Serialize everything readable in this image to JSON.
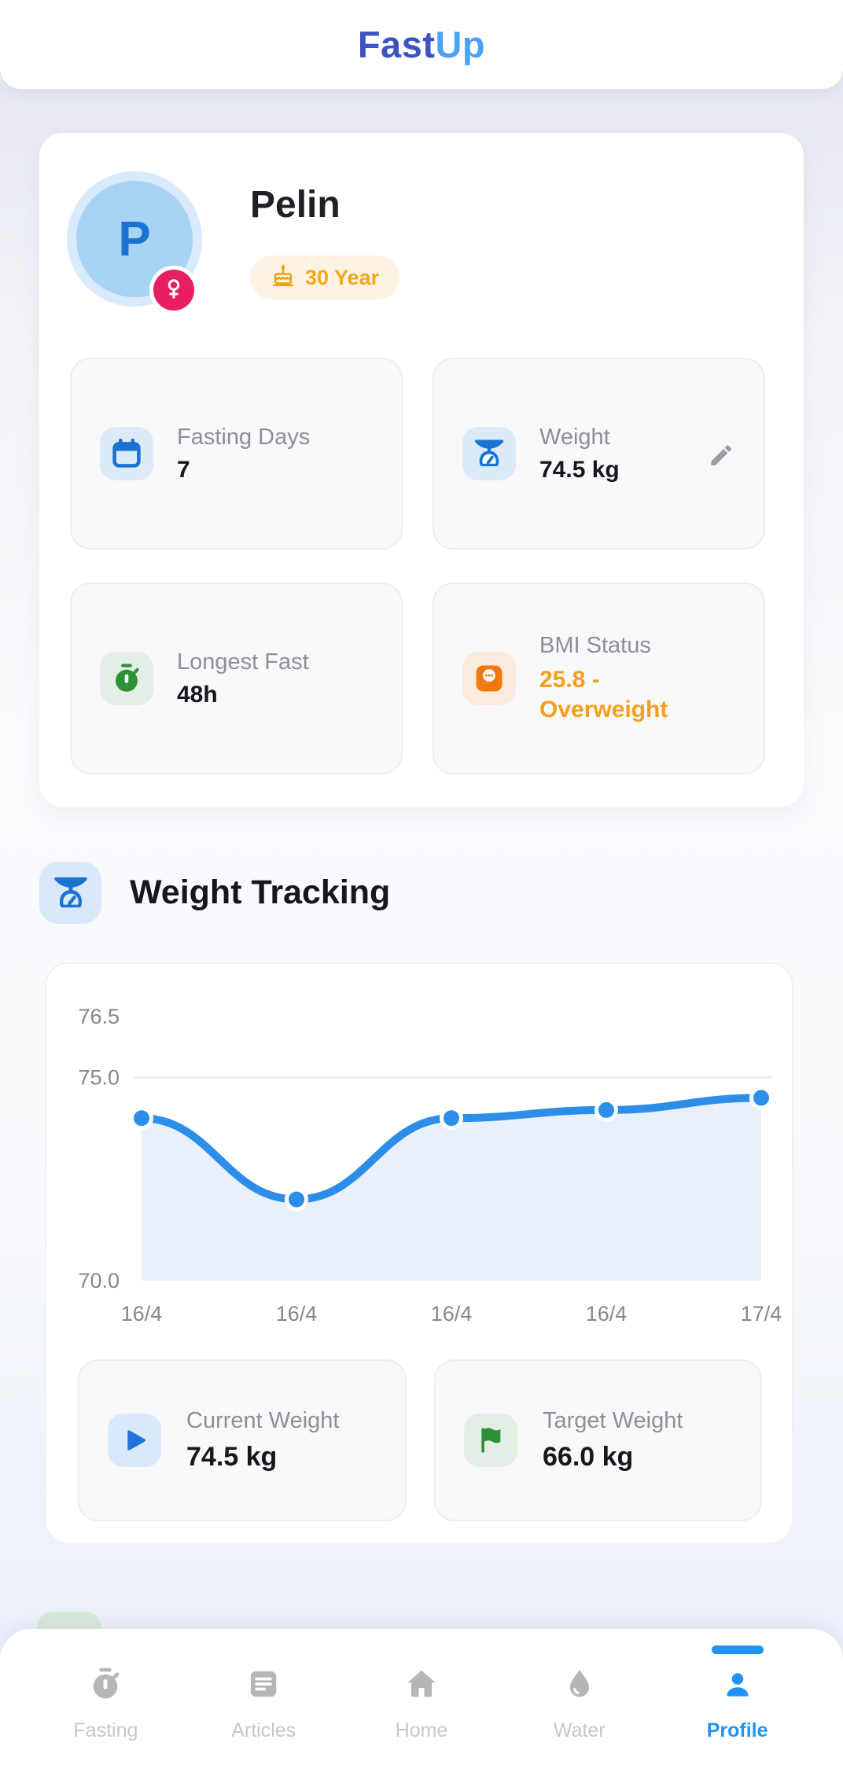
{
  "header": {
    "logo_primary": "Fast",
    "logo_secondary": "Up"
  },
  "profile_card": {
    "avatar_initial": "P",
    "name": "Pelin",
    "gender_badge_icon": "female-icon",
    "age_badge": {
      "icon": "birthday-cake-icon",
      "label": "30 Year"
    },
    "stats": [
      {
        "icon": "calendar-icon",
        "label": "Fasting Days",
        "value": "7"
      },
      {
        "icon": "weight-scale-icon",
        "label": "Weight",
        "value": "74.5 kg",
        "editable": true
      },
      {
        "icon": "stopwatch-icon",
        "label": "Longest Fast",
        "value": "48h"
      },
      {
        "icon": "bmi-scale-icon",
        "label": "BMI Status",
        "value": "25.8 - Overweight"
      }
    ]
  },
  "weight_tracking": {
    "title": "Weight Tracking",
    "icon": "weight-scale-icon",
    "summary": [
      {
        "icon": "play-icon",
        "label": "Current Weight",
        "value": "74.5 kg"
      },
      {
        "icon": "flag-icon",
        "label": "Target Weight",
        "value": "66.0 kg"
      }
    ]
  },
  "chart_data": {
    "type": "area",
    "title": "Weight Tracking",
    "x_labels": [
      "16/4",
      "16/4",
      "16/4",
      "16/4",
      "17/4"
    ],
    "values": [
      74.0,
      72.0,
      74.0,
      74.2,
      74.5
    ],
    "unit": "kg",
    "ylim": [
      70.0,
      76.5
    ],
    "yticks": [
      76.5,
      75.0,
      70.0
    ],
    "gridline_at": 75.0,
    "grid": "single horizontal line",
    "legend": "none",
    "line_color": "#2c8ee9",
    "fill_color": "#e7f0fb"
  },
  "bottom_nav": {
    "active_color": "#2193f3",
    "items": [
      {
        "icon": "stopwatch-icon",
        "label": "Fasting",
        "active": false
      },
      {
        "icon": "articles-icon",
        "label": "Articles",
        "active": false
      },
      {
        "icon": "home-icon",
        "label": "Home",
        "active": false
      },
      {
        "icon": "water-drop-icon",
        "label": "Water",
        "active": false
      },
      {
        "icon": "person-icon",
        "label": "Profile",
        "active": true
      }
    ]
  },
  "colors": {
    "accent_blue": "#2193f3",
    "logo_dark_blue": "#3d53c3",
    "logo_light_blue": "#4aa3f9",
    "icon_blue": "#1a73d2",
    "icon_green": "#2f9137",
    "icon_orange": "#f3780d",
    "bmi_text_orange": "#f99d1c",
    "age_text_orange": "#f2a71c",
    "gender_badge_pink": "#e81f63",
    "avatar_fill": "#a9d3f3"
  }
}
